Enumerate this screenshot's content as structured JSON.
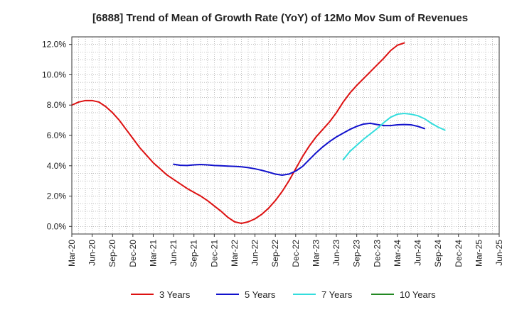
{
  "chart_data": {
    "type": "line",
    "title": "[6888]  Trend of Mean of Growth Rate (YoY) of 12Mo Mov Sum of Revenues",
    "xlabel": "",
    "ylabel": "",
    "ylim": [
      -0.5,
      12.5
    ],
    "yticks": [
      0,
      2,
      4,
      6,
      8,
      10,
      12
    ],
    "ytick_labels": [
      "0.0%",
      "2.0%",
      "4.0%",
      "6.0%",
      "8.0%",
      "10.0%",
      "12.0%"
    ],
    "x_labels": [
      "Mar-20",
      "Jun-20",
      "Sep-20",
      "Dec-20",
      "Mar-21",
      "Jun-21",
      "Sep-21",
      "Dec-21",
      "Mar-22",
      "Jun-22",
      "Sep-22",
      "Dec-22",
      "Mar-23",
      "Jun-23",
      "Sep-23",
      "Dec-23",
      "Mar-24",
      "Jun-24",
      "Sep-24",
      "Dec-24",
      "Mar-25",
      "Jun-25"
    ],
    "grid": true,
    "legend_position": "bottom",
    "series": [
      {
        "name": "3 Years",
        "color": "#dd1111",
        "start_index": 0,
        "values": [
          8.0,
          8.2,
          8.3,
          8.3,
          8.2,
          7.9,
          7.5,
          7.0,
          6.4,
          5.8,
          5.2,
          4.7,
          4.2,
          3.8,
          3.4,
          3.1,
          2.8,
          2.5,
          2.25,
          2.0,
          1.7,
          1.35,
          1.0,
          0.6,
          0.3,
          0.2,
          0.3,
          0.5,
          0.8,
          1.2,
          1.7,
          2.3,
          3.0,
          3.8,
          4.6,
          5.3,
          5.9,
          6.4,
          6.9,
          7.5,
          8.2,
          8.8,
          9.3,
          9.75,
          10.2,
          10.65,
          11.1,
          11.6,
          11.95,
          12.1
        ]
      },
      {
        "name": "5 Years",
        "color": "#1111cc",
        "start_index": 15,
        "values": [
          4.1,
          4.03,
          4.02,
          4.06,
          4.08,
          4.06,
          4.02,
          4.0,
          3.98,
          3.96,
          3.93,
          3.88,
          3.8,
          3.7,
          3.58,
          3.45,
          3.38,
          3.45,
          3.65,
          3.95,
          4.4,
          4.85,
          5.25,
          5.6,
          5.9,
          6.15,
          6.4,
          6.6,
          6.75,
          6.8,
          6.72,
          6.65,
          6.65,
          6.7,
          6.72,
          6.7,
          6.6,
          6.45
        ]
      },
      {
        "name": "7 Years",
        "color": "#33dddd",
        "start_index": 40,
        "values": [
          4.4,
          4.95,
          5.35,
          5.75,
          6.1,
          6.45,
          6.85,
          7.2,
          7.4,
          7.45,
          7.4,
          7.3,
          7.1,
          6.8,
          6.55,
          6.35
        ]
      },
      {
        "name": "10 Years",
        "color": "#228822",
        "start_index": 0,
        "values": []
      }
    ]
  }
}
